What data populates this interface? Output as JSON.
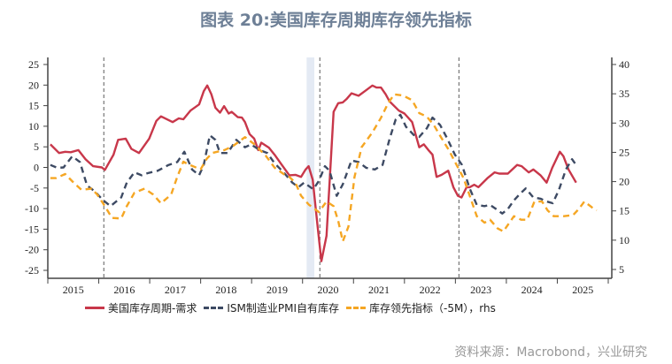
{
  "title": "图表 20:美国库存周期库存领先指标",
  "source": "资料来源：Macrobond，兴业研究",
  "colors": {
    "red": "#c8374a",
    "blue": "#3d4a63",
    "orange": "#f5a623",
    "shade": "#e4eaf4",
    "title": "#6d7f96"
  },
  "chart_data": {
    "type": "line",
    "title": "图表 20:美国库存周期库存领先指标",
    "x_axis": {
      "range": [
        2015,
        2026
      ],
      "tick_labels": [
        "2015",
        "2016",
        "2017",
        "2018",
        "2019",
        "2020",
        "2021",
        "2022",
        "2023",
        "2024",
        "2025"
      ]
    },
    "y_left": {
      "range": [
        -25,
        25
      ],
      "ticks": [
        25,
        20,
        15,
        10,
        5,
        0,
        -5,
        -10,
        -15,
        -20,
        -25
      ]
    },
    "y_right": {
      "range": [
        5,
        40
      ],
      "ticks": [
        40,
        35,
        30,
        25,
        20,
        15,
        10,
        5
      ]
    },
    "grid": false,
    "legend_position": "bottom",
    "vertical_markers": [
      2016.1,
      2020.34,
      2023.07
    ],
    "shaded_ranges": [
      [
        2020.08,
        2020.23
      ]
    ],
    "series": [
      {
        "name": "美国库存周期-需求",
        "axis": "left",
        "style": "solid",
        "color": "#c8374a",
        "points": [
          [
            2015.05,
            5.6
          ],
          [
            2015.22,
            3.5
          ],
          [
            2015.34,
            3.8
          ],
          [
            2015.45,
            3.7
          ],
          [
            2015.6,
            4.2
          ],
          [
            2015.74,
            2.0
          ],
          [
            2015.89,
            0.3
          ],
          [
            2016.06,
            0
          ],
          [
            2016.12,
            -0.6
          ],
          [
            2016.29,
            3.1
          ],
          [
            2016.38,
            6.7
          ],
          [
            2016.53,
            7.0
          ],
          [
            2016.64,
            4.5
          ],
          [
            2016.79,
            3.5
          ],
          [
            2016.99,
            7.0
          ],
          [
            2017.13,
            11.3
          ],
          [
            2017.22,
            12.4
          ],
          [
            2017.45,
            11.0
          ],
          [
            2017.57,
            11.9
          ],
          [
            2017.66,
            11.7
          ],
          [
            2017.8,
            13.8
          ],
          [
            2017.97,
            15.3
          ],
          [
            2018.06,
            18.5
          ],
          [
            2018.13,
            19.9
          ],
          [
            2018.21,
            17.8
          ],
          [
            2018.29,
            14.5
          ],
          [
            2018.38,
            13.3
          ],
          [
            2018.46,
            14.9
          ],
          [
            2018.55,
            13.1
          ],
          [
            2018.61,
            13.5
          ],
          [
            2018.73,
            12.2
          ],
          [
            2018.81,
            12.1
          ],
          [
            2018.87,
            11.0
          ],
          [
            2018.96,
            8.1
          ],
          [
            2019.05,
            7.0
          ],
          [
            2019.13,
            4.2
          ],
          [
            2019.19,
            6.0
          ],
          [
            2019.34,
            4.8
          ],
          [
            2019.45,
            3.1
          ],
          [
            2019.57,
            1.0
          ],
          [
            2019.74,
            -1.9
          ],
          [
            2019.86,
            -1.8
          ],
          [
            2019.97,
            -2.3
          ],
          [
            2020.06,
            -0.5
          ],
          [
            2020.12,
            0.3
          ],
          [
            2020.2,
            -3.0
          ],
          [
            2020.29,
            -13.7
          ],
          [
            2020.37,
            -22.8
          ],
          [
            2020.47,
            -16.6
          ],
          [
            2020.61,
            13.5
          ],
          [
            2020.7,
            15.6
          ],
          [
            2020.79,
            15.8
          ],
          [
            2020.87,
            16.7
          ],
          [
            2020.96,
            18.0
          ],
          [
            2021.1,
            17.4
          ],
          [
            2021.22,
            18.5
          ],
          [
            2021.37,
            19.9
          ],
          [
            2021.45,
            19.4
          ],
          [
            2021.54,
            19.4
          ],
          [
            2021.63,
            17.8
          ],
          [
            2021.71,
            16.0
          ],
          [
            2021.89,
            13.8
          ],
          [
            2022.0,
            13.1
          ],
          [
            2022.15,
            11.0
          ],
          [
            2022.29,
            4.9
          ],
          [
            2022.38,
            5.6
          ],
          [
            2022.47,
            4.2
          ],
          [
            2022.55,
            3.1
          ],
          [
            2022.63,
            -2.3
          ],
          [
            2022.73,
            -1.8
          ],
          [
            2022.86,
            -0.8
          ],
          [
            2022.96,
            -4.8
          ],
          [
            2023.05,
            -6.9
          ],
          [
            2023.12,
            -7.3
          ],
          [
            2023.22,
            -4.8
          ],
          [
            2023.28,
            -4.8
          ],
          [
            2023.37,
            -4.2
          ],
          [
            2023.45,
            -4.8
          ],
          [
            2023.63,
            -2.6
          ],
          [
            2023.77,
            -1.2
          ],
          [
            2023.86,
            -1.5
          ],
          [
            2024.03,
            -1.5
          ],
          [
            2024.21,
            0.6
          ],
          [
            2024.3,
            0.3
          ],
          [
            2024.44,
            -1.2
          ],
          [
            2024.53,
            -0.5
          ],
          [
            2024.67,
            -1.9
          ],
          [
            2024.79,
            -3.7
          ],
          [
            2024.9,
            -0.1
          ],
          [
            2025.05,
            3.8
          ],
          [
            2025.12,
            2.7
          ],
          [
            2025.22,
            -0.5
          ],
          [
            2025.37,
            -3.7
          ]
        ]
      },
      {
        "name": "ISM制造业PMI自有库存",
        "axis": "left",
        "style": "dashed",
        "color": "#3d4a63",
        "points": [
          [
            2015.05,
            0.6
          ],
          [
            2015.19,
            -0.1
          ],
          [
            2015.31,
            0
          ],
          [
            2015.48,
            2.7
          ],
          [
            2015.63,
            1.3
          ],
          [
            2015.77,
            -4.4
          ],
          [
            2015.92,
            -5.8
          ],
          [
            2016.09,
            -8
          ],
          [
            2016.23,
            -9.4
          ],
          [
            2016.44,
            -7.3
          ],
          [
            2016.55,
            -3.7
          ],
          [
            2016.7,
            -1.2
          ],
          [
            2016.84,
            -1.9
          ],
          [
            2016.96,
            -1.4
          ],
          [
            2017.16,
            -0.8
          ],
          [
            2017.37,
            0.6
          ],
          [
            2017.54,
            1.3
          ],
          [
            2017.68,
            3.8
          ],
          [
            2017.83,
            -0.5
          ],
          [
            2017.97,
            -1.9
          ],
          [
            2018.06,
            0.6
          ],
          [
            2018.18,
            7.8
          ],
          [
            2018.29,
            6.7
          ],
          [
            2018.38,
            3.5
          ],
          [
            2018.53,
            3.5
          ],
          [
            2018.7,
            6.7
          ],
          [
            2018.87,
            4.9
          ],
          [
            2018.99,
            5.6
          ],
          [
            2019.16,
            4.2
          ],
          [
            2019.31,
            3.5
          ],
          [
            2019.45,
            1.0
          ],
          [
            2019.63,
            -1.2
          ],
          [
            2019.8,
            -3.7
          ],
          [
            2019.92,
            -4.8
          ],
          [
            2020.03,
            -3.7
          ],
          [
            2020.21,
            -5.3
          ],
          [
            2020.32,
            -3.3
          ],
          [
            2020.44,
            0.3
          ],
          [
            2020.53,
            -0.8
          ],
          [
            2020.67,
            -6.9
          ],
          [
            2020.79,
            -4.1
          ],
          [
            2020.96,
            1.7
          ],
          [
            2021.1,
            1.3
          ],
          [
            2021.25,
            -0.1
          ],
          [
            2021.42,
            -0.5
          ],
          [
            2021.57,
            0.6
          ],
          [
            2021.71,
            7.0
          ],
          [
            2021.83,
            11.7
          ],
          [
            2021.92,
            12.8
          ],
          [
            2022.03,
            9.9
          ],
          [
            2022.18,
            7.9
          ],
          [
            2022.29,
            7.4
          ],
          [
            2022.44,
            9.5
          ],
          [
            2022.55,
            12.1
          ],
          [
            2022.7,
            10.3
          ],
          [
            2022.84,
            7.0
          ],
          [
            2022.99,
            3.1
          ],
          [
            2023.13,
            0.6
          ],
          [
            2023.28,
            -5.1
          ],
          [
            2023.42,
            -9.1
          ],
          [
            2023.57,
            -9.4
          ],
          [
            2023.68,
            -9.1
          ],
          [
            2023.8,
            -10.1
          ],
          [
            2023.92,
            -11.2
          ],
          [
            2024.03,
            -10.1
          ],
          [
            2024.15,
            -8
          ],
          [
            2024.26,
            -6.5
          ],
          [
            2024.38,
            -5.1
          ],
          [
            2024.53,
            -7.3
          ],
          [
            2024.67,
            -7.6
          ],
          [
            2024.8,
            -8.3
          ],
          [
            2024.91,
            -8.7
          ],
          [
            2025.03,
            -5.5
          ],
          [
            2025.17,
            -0.5
          ],
          [
            2025.29,
            2.0
          ],
          [
            2025.37,
            0.6
          ]
        ]
      },
      {
        "name": "库存领先指标（-5M），rhs",
        "axis": "right",
        "style": "dashed",
        "color": "#f5a623",
        "points": [
          [
            2015.05,
            20.6
          ],
          [
            2015.16,
            20.6
          ],
          [
            2015.34,
            21.3
          ],
          [
            2015.51,
            19.8
          ],
          [
            2015.66,
            18.6
          ],
          [
            2015.86,
            18.8
          ],
          [
            2015.97,
            17.8
          ],
          [
            2016.12,
            15.8
          ],
          [
            2016.26,
            13.8
          ],
          [
            2016.44,
            13.7
          ],
          [
            2016.55,
            15.8
          ],
          [
            2016.7,
            18.1
          ],
          [
            2016.9,
            18.8
          ],
          [
            2017.07,
            17.8
          ],
          [
            2017.22,
            16.3
          ],
          [
            2017.42,
            17.8
          ],
          [
            2017.54,
            20.8
          ],
          [
            2017.66,
            23.4
          ],
          [
            2017.77,
            22.9
          ],
          [
            2018.0,
            22.1
          ],
          [
            2018.12,
            23.9
          ],
          [
            2018.23,
            24.9
          ],
          [
            2018.47,
            25.4
          ],
          [
            2018.64,
            26.1
          ],
          [
            2018.87,
            27.6
          ],
          [
            2019.05,
            26.4
          ],
          [
            2019.28,
            24.4
          ],
          [
            2019.45,
            22.4
          ],
          [
            2019.63,
            21.3
          ],
          [
            2019.74,
            20.8
          ],
          [
            2019.86,
            19.8
          ],
          [
            2019.97,
            17.6
          ],
          [
            2020.12,
            16.1
          ],
          [
            2020.32,
            14.8
          ],
          [
            2020.47,
            16.6
          ],
          [
            2020.61,
            15.8
          ],
          [
            2020.7,
            13.3
          ],
          [
            2020.79,
            9.8
          ],
          [
            2020.9,
            12.3
          ],
          [
            2021.02,
            20.8
          ],
          [
            2021.16,
            25.9
          ],
          [
            2021.37,
            28.4
          ],
          [
            2021.54,
            30.9
          ],
          [
            2021.68,
            33.4
          ],
          [
            2021.8,
            34.9
          ],
          [
            2021.97,
            34.7
          ],
          [
            2022.15,
            33.9
          ],
          [
            2022.29,
            31.7
          ],
          [
            2022.44,
            31.1
          ],
          [
            2022.58,
            29.6
          ],
          [
            2022.73,
            27.4
          ],
          [
            2022.87,
            25.4
          ],
          [
            2023.02,
            22.9
          ],
          [
            2023.16,
            20.6
          ],
          [
            2023.28,
            17.6
          ],
          [
            2023.42,
            14.1
          ],
          [
            2023.57,
            13.0
          ],
          [
            2023.68,
            13.5
          ],
          [
            2023.83,
            12.0
          ],
          [
            2023.94,
            11.5
          ],
          [
            2024.06,
            13.0
          ],
          [
            2024.15,
            14.1
          ],
          [
            2024.29,
            13.5
          ],
          [
            2024.41,
            13.5
          ],
          [
            2024.55,
            16.6
          ],
          [
            2024.7,
            16.6
          ],
          [
            2024.81,
            15.1
          ],
          [
            2024.93,
            14.1
          ],
          [
            2025.13,
            14.1
          ],
          [
            2025.31,
            14.3
          ],
          [
            2025.42,
            15.3
          ],
          [
            2025.53,
            16.6
          ],
          [
            2025.68,
            15.6
          ],
          [
            2025.77,
            15.1
          ]
        ]
      }
    ]
  }
}
